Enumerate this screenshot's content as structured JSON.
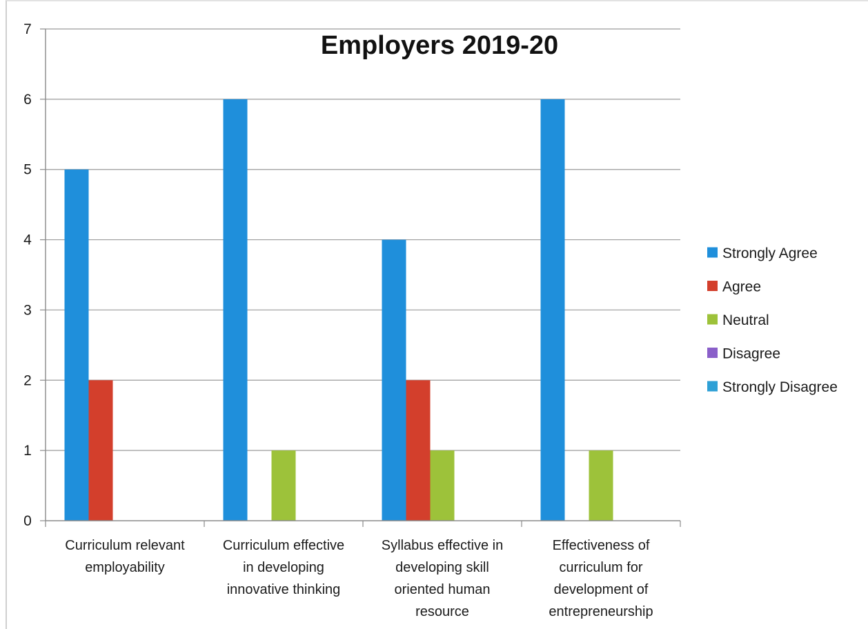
{
  "chart_data": {
    "type": "bar",
    "title": "Employers 2019-20",
    "categories": [
      [
        "Curriculum relevant",
        "employability"
      ],
      [
        "Curriculum effective",
        "in developing",
        "innovative thinking"
      ],
      [
        "Syllabus effective in",
        "developing skill",
        "oriented human",
        "resource"
      ],
      [
        "Effectiveness of",
        "curriculum for",
        "development of",
        "entrepreneurship"
      ]
    ],
    "series": [
      {
        "name": "Strongly Agree",
        "color": "#1f8fdb",
        "values": [
          5,
          6,
          4,
          6
        ]
      },
      {
        "name": "Agree",
        "color": "#d33f2c",
        "values": [
          2,
          0,
          2,
          0
        ]
      },
      {
        "name": "Neutral",
        "color": "#9dc23a",
        "values": [
          0,
          1,
          1,
          1
        ]
      },
      {
        "name": "Disagree",
        "color": "#8a5fc9",
        "values": [
          0,
          0,
          0,
          0
        ]
      },
      {
        "name": "Strongly Disagree",
        "color": "#2ea0d6",
        "values": [
          0,
          0,
          0,
          0
        ]
      }
    ],
    "ylim": [
      0,
      7
    ],
    "yticks": [
      "0",
      "1",
      "2",
      "3",
      "4",
      "5",
      "6",
      "7"
    ],
    "xlabel": "",
    "ylabel": "",
    "grid": true,
    "legend_position": "right"
  }
}
